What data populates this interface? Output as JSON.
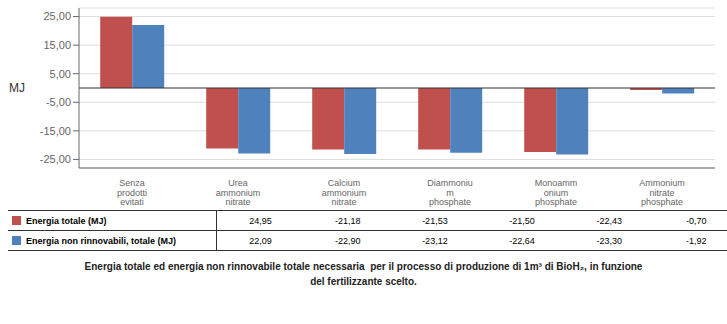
{
  "chart_data": {
    "type": "bar",
    "title": "Energia totale ed energia non rinnovabile totale necessaria  per il processo di produzione di 1m³ di BioH₂, in funzione\ndel fertilizzante scelto.",
    "ylabel": "MJ",
    "categories": [
      "Senza\nprodotti\nevitati",
      "Urea\nammonium\nnitrate",
      "Calcium\nammonium\nnitrate",
      "Diammoniu\nm\nphosphate",
      "Monoamm\nonium\nphosphate",
      "Ammonium\nnitrate\nphosphate"
    ],
    "series": [
      {
        "name": "Energia totale (MJ)",
        "color": "#C0504D",
        "values": [
          24.95,
          -21.18,
          -21.53,
          -21.5,
          -22.43,
          -0.7
        ],
        "value_labels": [
          "24,95",
          "-21,18",
          "-21,53",
          "-21,50",
          "-22,43",
          "-0,70"
        ]
      },
      {
        "name": "Energia non rinnovabili, totale (MJ)",
        "color": "#4F81BD",
        "values": [
          22.09,
          -22.9,
          -23.12,
          -22.64,
          -23.3,
          -1.92
        ],
        "value_labels": [
          "22,09",
          "-22,90",
          "-23,12",
          "-22,64",
          "-23,30",
          "-1,92"
        ]
      }
    ],
    "ylim": [
      -28,
      28
    ],
    "yticks": [
      {
        "value": -25,
        "label": "-25,00"
      },
      {
        "value": -15,
        "label": "-15,00"
      },
      {
        "value": -5,
        "label": "-5,00"
      },
      {
        "value": 5,
        "label": "5,00"
      },
      {
        "value": 15,
        "label": "15,00"
      },
      {
        "value": 25,
        "label": "25,00"
      }
    ],
    "grid": true
  }
}
